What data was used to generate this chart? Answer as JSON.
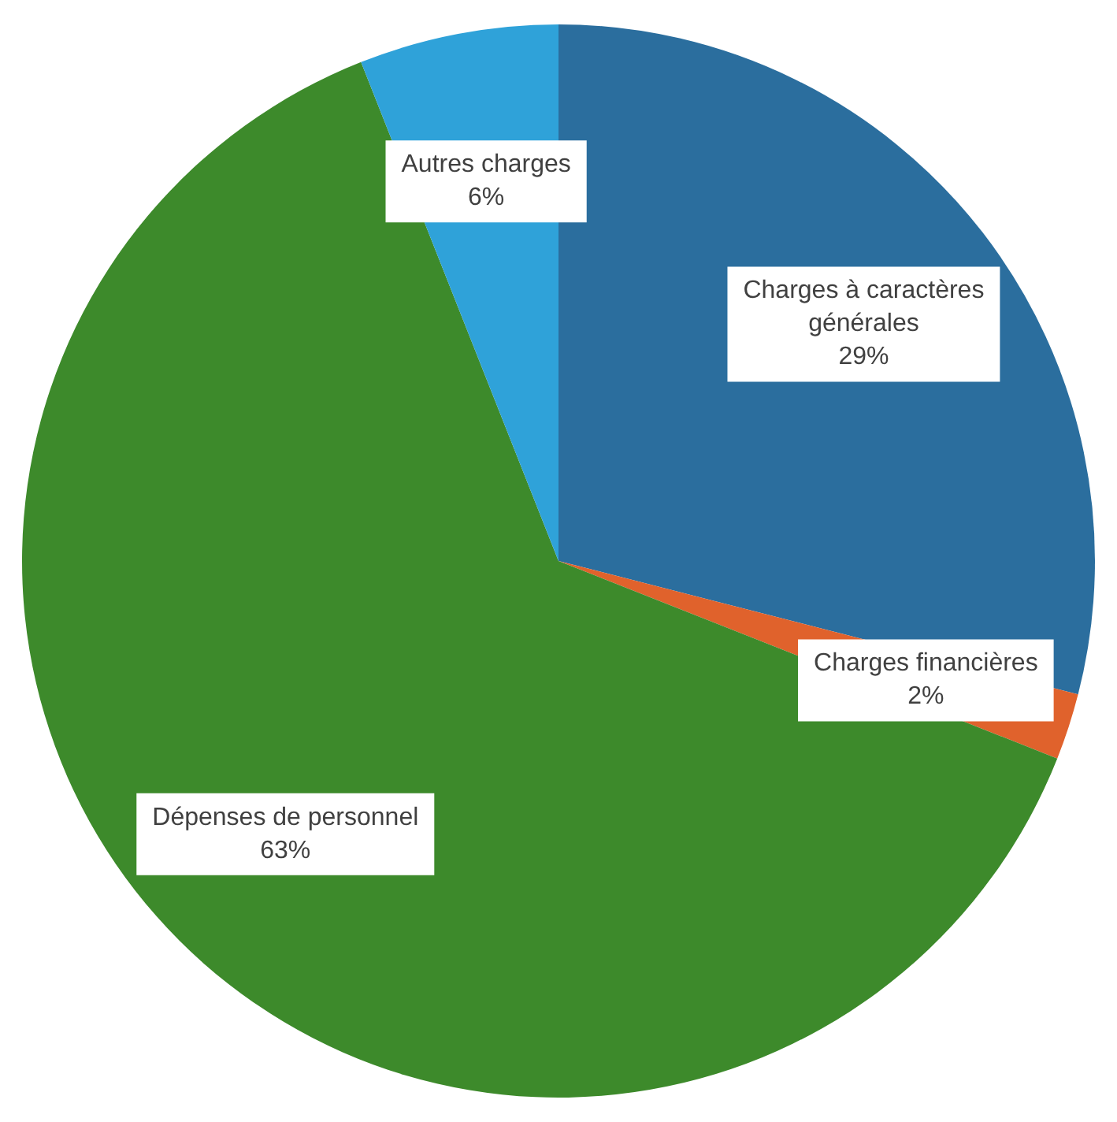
{
  "chart_data": {
    "type": "pie",
    "categories": [
      "Charges à caractères générales",
      "Charges financières",
      "Dépenses de personnel",
      "Autres charges"
    ],
    "values": [
      29,
      2,
      63,
      6
    ],
    "colors": [
      "#2b6e9e",
      "#e0622c",
      "#3d8a2b",
      "#2fa2d9"
    ],
    "value_labels": [
      "29%",
      "2%",
      "63%",
      "6%"
    ],
    "legend": false
  }
}
